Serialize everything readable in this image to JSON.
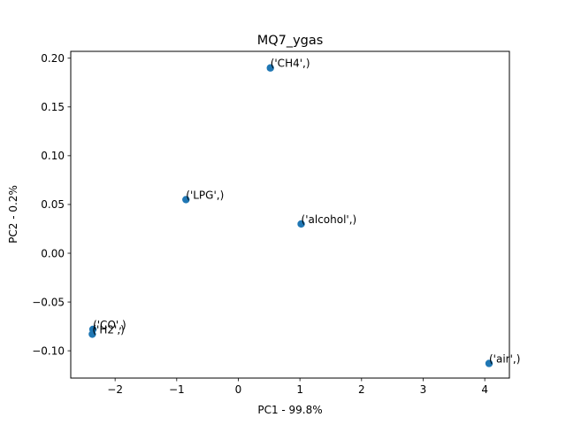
{
  "chart_data": {
    "type": "scatter",
    "title": "MQ7_ygas",
    "xlabel": "PC1 - 99.8%",
    "ylabel": "PC2 - 0.2%",
    "xlim": [
      -2.72,
      4.4
    ],
    "ylim": [
      -0.128,
      0.207
    ],
    "xticks": [
      -2,
      -1,
      0,
      1,
      2,
      3,
      4
    ],
    "xtick_labels": [
      "−2",
      "−1",
      "0",
      "1",
      "2",
      "3",
      "4"
    ],
    "yticks": [
      -0.1,
      -0.05,
      0.0,
      0.05,
      0.1,
      0.15,
      0.2
    ],
    "ytick_labels": [
      "−0.10",
      "−0.05",
      "0.00",
      "0.05",
      "0.10",
      "0.15",
      "0.20"
    ],
    "grid": false,
    "marker_color": "#1f77b4",
    "points": [
      {
        "label": "('CH4',)",
        "x": 0.52,
        "y": 0.19
      },
      {
        "label": "('LPG',)",
        "x": -0.85,
        "y": 0.055
      },
      {
        "label": "('alcohol',)",
        "x": 1.02,
        "y": 0.03
      },
      {
        "label": "('CO',)",
        "x": -2.36,
        "y": -0.078
      },
      {
        "label": "('H2',)",
        "x": -2.37,
        "y": -0.083
      },
      {
        "label": "('air',)",
        "x": 4.07,
        "y": -0.113
      }
    ]
  }
}
